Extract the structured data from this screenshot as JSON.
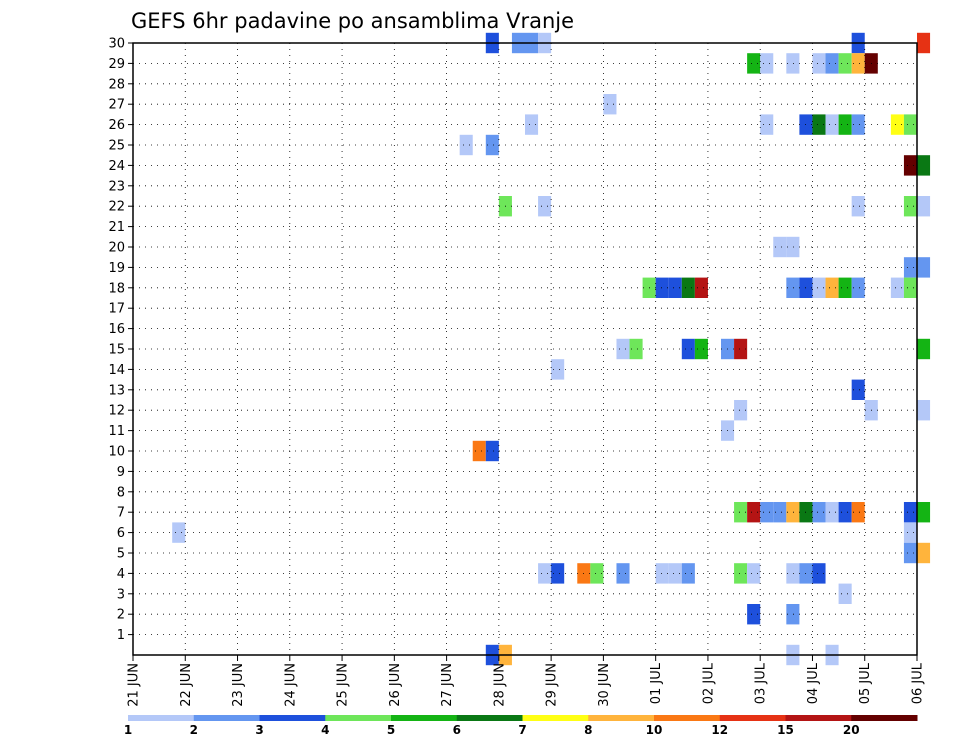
{
  "chart_data": {
    "type": "heatmap",
    "title": "GEFS 6hr padavine po ansamblima Vranje",
    "xlabel": "",
    "ylabel": "",
    "x_tick_labels": [
      "21 JUN",
      "22 JUN",
      "23 JUN",
      "24 JUN",
      "25 JUN",
      "26 JUN",
      "27 JUN",
      "28 JUN",
      "29 JUN",
      "30 JUN",
      "01 JUL",
      "02 JUL",
      "03 JUL",
      "04 JUL",
      "05 JUL",
      "06 JUL"
    ],
    "y_tick_labels": [
      "1",
      "2",
      "3",
      "4",
      "5",
      "6",
      "7",
      "8",
      "9",
      "10",
      "11",
      "12",
      "13",
      "14",
      "15",
      "16",
      "17",
      "18",
      "19",
      "20",
      "21",
      "22",
      "23",
      "24",
      "25",
      "26",
      "27",
      "28",
      "29",
      "30"
    ],
    "x_range_days": [
      0,
      15
    ],
    "y_range": [
      0,
      30
    ],
    "grid": true,
    "colorbar": {
      "levels": [
        "1",
        "2",
        "3",
        "4",
        "5",
        "6",
        "7",
        "8",
        "10",
        "12",
        "15",
        "20"
      ],
      "colors": [
        "#b4c8f8",
        "#6496f0",
        "#1e50dc",
        "#6ee65a",
        "#14b414",
        "#0a7814",
        "#ffff14",
        "#ffb43c",
        "#fa7814",
        "#e63214",
        "#b41414",
        "#640000"
      ]
    },
    "series": [
      {
        "ensemble": 30,
        "cells": [
          {
            "t": "27 JUN 18Z",
            "c": 2
          },
          {
            "t": "28 JUN 06Z",
            "c": 1
          },
          {
            "t": "28 JUN 12Z",
            "c": 1
          },
          {
            "t": "28 JUN 18Z",
            "c": 0
          },
          {
            "t": "04 JUL 18Z",
            "c": 2
          },
          {
            "t": "06 JUL 00Z",
            "c": 9
          }
        ]
      },
      {
        "ensemble": 29,
        "cells": [
          {
            "t": "02 JUL 18Z",
            "c": 4
          },
          {
            "t": "03 JUL 00Z",
            "c": 0
          },
          {
            "t": "03 JUL 12Z",
            "c": 0
          },
          {
            "t": "04 JUL 00Z",
            "c": 0
          },
          {
            "t": "04 JUL 06Z",
            "c": 1
          },
          {
            "t": "04 JUL 12Z",
            "c": 3
          },
          {
            "t": "04 JUL 18Z",
            "c": 7
          },
          {
            "t": "05 JUL 00Z",
            "c": 11
          }
        ]
      },
      {
        "ensemble": 27,
        "cells": [
          {
            "t": "30 JUN 00Z",
            "c": 0
          }
        ]
      },
      {
        "ensemble": 26,
        "cells": [
          {
            "t": "28 JUN 12Z",
            "c": 0
          },
          {
            "t": "03 JUL 00Z",
            "c": 0
          },
          {
            "t": "03 JUL 18Z",
            "c": 2
          },
          {
            "t": "04 JUL 00Z",
            "c": 5
          },
          {
            "t": "04 JUL 06Z",
            "c": 0
          },
          {
            "t": "04 JUL 12Z",
            "c": 4
          },
          {
            "t": "04 JUL 18Z",
            "c": 1
          },
          {
            "t": "05 JUL 12Z",
            "c": 6
          },
          {
            "t": "05 JUL 18Z",
            "c": 3
          }
        ]
      },
      {
        "ensemble": 25,
        "cells": [
          {
            "t": "27 JUN 06Z",
            "c": 0
          },
          {
            "t": "27 JUN 18Z",
            "c": 1
          }
        ]
      },
      {
        "ensemble": 24,
        "cells": [
          {
            "t": "05 JUL 18Z",
            "c": 11
          },
          {
            "t": "06 JUL 00Z",
            "c": 5
          }
        ]
      },
      {
        "ensemble": 22,
        "cells": [
          {
            "t": "28 JUN 00Z",
            "c": 3
          },
          {
            "t": "28 JUN 18Z",
            "c": 0
          },
          {
            "t": "04 JUL 18Z",
            "c": 0
          },
          {
            "t": "05 JUL 18Z",
            "c": 3
          },
          {
            "t": "06 JUL 00Z",
            "c": 0
          }
        ]
      },
      {
        "ensemble": 20,
        "cells": [
          {
            "t": "03 JUL 06Z",
            "c": 0
          },
          {
            "t": "03 JUL 12Z",
            "c": 0
          }
        ]
      },
      {
        "ensemble": 19,
        "cells": [
          {
            "t": "05 JUL 18Z",
            "c": 1
          },
          {
            "t": "06 JUL 00Z",
            "c": 1
          }
        ]
      },
      {
        "ensemble": 18,
        "cells": [
          {
            "t": "30 JUN 18Z",
            "c": 3
          },
          {
            "t": "01 JUL 00Z",
            "c": 2
          },
          {
            "t": "01 JUL 06Z",
            "c": 2
          },
          {
            "t": "01 JUL 12Z",
            "c": 5
          },
          {
            "t": "01 JUL 18Z",
            "c": 10
          },
          {
            "t": "03 JUL 12Z",
            "c": 1
          },
          {
            "t": "03 JUL 18Z",
            "c": 2
          },
          {
            "t": "04 JUL 00Z",
            "c": 0
          },
          {
            "t": "04 JUL 06Z",
            "c": 7
          },
          {
            "t": "04 JUL 12Z",
            "c": 4
          },
          {
            "t": "04 JUL 18Z",
            "c": 1
          },
          {
            "t": "05 JUL 12Z",
            "c": 0
          },
          {
            "t": "05 JUL 18Z",
            "c": 3
          }
        ]
      },
      {
        "ensemble": 15,
        "cells": [
          {
            "t": "30 JUN 06Z",
            "c": 0
          },
          {
            "t": "30 JUN 12Z",
            "c": 3
          },
          {
            "t": "01 JUL 12Z",
            "c": 2
          },
          {
            "t": "01 JUL 18Z",
            "c": 4
          },
          {
            "t": "02 JUL 06Z",
            "c": 1
          },
          {
            "t": "02 JUL 12Z",
            "c": 10
          },
          {
            "t": "06 JUL 00Z",
            "c": 4
          }
        ]
      },
      {
        "ensemble": 14,
        "cells": [
          {
            "t": "29 JUN 00Z",
            "c": 0
          }
        ]
      },
      {
        "ensemble": 13,
        "cells": [
          {
            "t": "04 JUL 18Z",
            "c": 2
          }
        ]
      },
      {
        "ensemble": 12,
        "cells": [
          {
            "t": "02 JUL 12Z",
            "c": 0
          },
          {
            "t": "05 JUL 00Z",
            "c": 0
          },
          {
            "t": "06 JUL 00Z",
            "c": 0
          }
        ]
      },
      {
        "ensemble": 11,
        "cells": [
          {
            "t": "02 JUL 06Z",
            "c": 0
          }
        ]
      },
      {
        "ensemble": 10,
        "cells": [
          {
            "t": "27 JUN 12Z",
            "c": 8
          },
          {
            "t": "27 JUN 18Z",
            "c": 2
          }
        ]
      },
      {
        "ensemble": 7,
        "cells": [
          {
            "t": "02 JUL 12Z",
            "c": 3
          },
          {
            "t": "02 JUL 18Z",
            "c": 10
          },
          {
            "t": "03 JUL 00Z",
            "c": 1
          },
          {
            "t": "03 JUL 06Z",
            "c": 1
          },
          {
            "t": "03 JUL 12Z",
            "c": 7
          },
          {
            "t": "03 JUL 18Z",
            "c": 5
          },
          {
            "t": "04 JUL 00Z",
            "c": 1
          },
          {
            "t": "04 JUL 06Z",
            "c": 0
          },
          {
            "t": "04 JUL 12Z",
            "c": 2
          },
          {
            "t": "04 JUL 18Z",
            "c": 8
          },
          {
            "t": "05 JUL 18Z",
            "c": 2
          },
          {
            "t": "06 JUL 00Z",
            "c": 4
          }
        ]
      },
      {
        "ensemble": 6,
        "cells": [
          {
            "t": "21 JUN 18Z",
            "c": 0
          },
          {
            "t": "05 JUL 18Z",
            "c": 0
          }
        ]
      },
      {
        "ensemble": 5,
        "cells": [
          {
            "t": "05 JUL 18Z",
            "c": 1
          },
          {
            "t": "06 JUL 00Z",
            "c": 7
          }
        ]
      },
      {
        "ensemble": 4,
        "cells": [
          {
            "t": "28 JUN 18Z",
            "c": 0
          },
          {
            "t": "29 JUN 00Z",
            "c": 2
          },
          {
            "t": "29 JUN 12Z",
            "c": 8
          },
          {
            "t": "29 JUN 18Z",
            "c": 3
          },
          {
            "t": "30 JUN 06Z",
            "c": 1
          },
          {
            "t": "01 JUL 00Z",
            "c": 0
          },
          {
            "t": "01 JUL 06Z",
            "c": 0
          },
          {
            "t": "01 JUL 12Z",
            "c": 1
          },
          {
            "t": "02 JUL 12Z",
            "c": 3
          },
          {
            "t": "02 JUL 18Z",
            "c": 0
          },
          {
            "t": "03 JUL 12Z",
            "c": 0
          },
          {
            "t": "03 JUL 18Z",
            "c": 1
          },
          {
            "t": "04 JUL 00Z",
            "c": 2
          }
        ]
      },
      {
        "ensemble": 3,
        "cells": [
          {
            "t": "04 JUL 12Z",
            "c": 0
          }
        ]
      },
      {
        "ensemble": 2,
        "cells": [
          {
            "t": "02 JUL 18Z",
            "c": 2
          },
          {
            "t": "03 JUL 12Z",
            "c": 1
          }
        ]
      },
      {
        "ensemble": 0,
        "cells": [
          {
            "t": "27 JUN 18Z",
            "c": 2
          },
          {
            "t": "28 JUN 00Z",
            "c": 7
          },
          {
            "t": "03 JUL 12Z",
            "c": 0
          },
          {
            "t": "04 JUL 06Z",
            "c": 0
          }
        ]
      }
    ]
  }
}
